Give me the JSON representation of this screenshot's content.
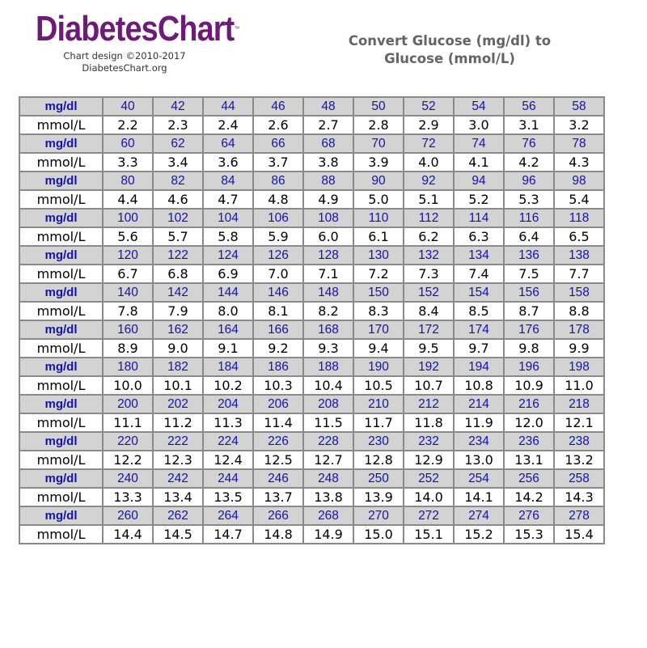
{
  "logo": {
    "wordmark": "DiabetesChart",
    "trademark": "™",
    "credit": "Chart design ©2010-2017",
    "site": "DiabetesChart.org"
  },
  "title_line1": "Convert Glucose (mg/dl) to",
  "title_line2": "Glucose (mmol/L)",
  "colors": {
    "mg_row_background": "#d3d3d3",
    "mg_text": "#1212b4",
    "mmol_text": "#111111",
    "logo": "#6e1a78",
    "title": "#646464",
    "border": "#8a8a8a"
  },
  "chart_data": {
    "type": "table",
    "mg_label": "mg/dl",
    "mmol_label": "mmol/L",
    "rows": [
      {
        "mg": [
          "40",
          "42",
          "44",
          "46",
          "48",
          "50",
          "52",
          "54",
          "56",
          "58"
        ],
        "mmol": [
          "2.2",
          "2.3",
          "2.4",
          "2.6",
          "2.7",
          "2.8",
          "2.9",
          "3.0",
          "3.1",
          "3.2"
        ]
      },
      {
        "mg": [
          "60",
          "62",
          "64",
          "66",
          "68",
          "70",
          "72",
          "74",
          "76",
          "78"
        ],
        "mmol": [
          "3.3",
          "3.4",
          "3.6",
          "3.7",
          "3.8",
          "3.9",
          "4.0",
          "4.1",
          "4.2",
          "4.3"
        ]
      },
      {
        "mg": [
          "80",
          "82",
          "84",
          "86",
          "88",
          "90",
          "92",
          "94",
          "96",
          "98"
        ],
        "mmol": [
          "4.4",
          "4.6",
          "4.7",
          "4.8",
          "4.9",
          "5.0",
          "5.1",
          "5.2",
          "5.3",
          "5.4"
        ]
      },
      {
        "mg": [
          "100",
          "102",
          "104",
          "106",
          "108",
          "110",
          "112",
          "114",
          "116",
          "118"
        ],
        "mmol": [
          "5.6",
          "5.7",
          "5.8",
          "5.9",
          "6.0",
          "6.1",
          "6.2",
          "6.3",
          "6.4",
          "6.5"
        ]
      },
      {
        "mg": [
          "120",
          "122",
          "124",
          "126",
          "128",
          "130",
          "132",
          "134",
          "136",
          "138"
        ],
        "mmol": [
          "6.7",
          "6.8",
          "6.9",
          "7.0",
          "7.1",
          "7.2",
          "7.3",
          "7.4",
          "7.5",
          "7.7"
        ]
      },
      {
        "mg": [
          "140",
          "142",
          "144",
          "146",
          "148",
          "150",
          "152",
          "154",
          "156",
          "158"
        ],
        "mmol": [
          "7.8",
          "7.9",
          "8.0",
          "8.1",
          "8.2",
          "8.3",
          "8.4",
          "8.5",
          "8.7",
          "8.8"
        ]
      },
      {
        "mg": [
          "160",
          "162",
          "164",
          "166",
          "168",
          "170",
          "172",
          "174",
          "176",
          "178"
        ],
        "mmol": [
          "8.9",
          "9.0",
          "9.1",
          "9.2",
          "9.3",
          "9.4",
          "9.5",
          "9.7",
          "9.8",
          "9.9"
        ]
      },
      {
        "mg": [
          "180",
          "182",
          "184",
          "186",
          "188",
          "190",
          "192",
          "194",
          "196",
          "198"
        ],
        "mmol": [
          "10.0",
          "10.1",
          "10.2",
          "10.3",
          "10.4",
          "10.5",
          "10.7",
          "10.8",
          "10.9",
          "11.0"
        ]
      },
      {
        "mg": [
          "200",
          "202",
          "204",
          "206",
          "208",
          "210",
          "212",
          "214",
          "216",
          "218"
        ],
        "mmol": [
          "11.1",
          "11.2",
          "11.3",
          "11.4",
          "11.5",
          "11.7",
          "11.8",
          "11.9",
          "12.0",
          "12.1"
        ]
      },
      {
        "mg": [
          "220",
          "222",
          "224",
          "226",
          "228",
          "230",
          "232",
          "234",
          "236",
          "238"
        ],
        "mmol": [
          "12.2",
          "12.3",
          "12.4",
          "12.5",
          "12.7",
          "12.8",
          "12.9",
          "13.0",
          "13.1",
          "13.2"
        ]
      },
      {
        "mg": [
          "240",
          "242",
          "244",
          "246",
          "248",
          "250",
          "252",
          "254",
          "256",
          "258"
        ],
        "mmol": [
          "13.3",
          "13.4",
          "13.5",
          "13.7",
          "13.8",
          "13.9",
          "14.0",
          "14.1",
          "14.2",
          "14.3"
        ]
      },
      {
        "mg": [
          "260",
          "262",
          "264",
          "266",
          "268",
          "270",
          "272",
          "274",
          "276",
          "278"
        ],
        "mmol": [
          "14.4",
          "14.5",
          "14.7",
          "14.8",
          "14.9",
          "15.0",
          "15.1",
          "15.2",
          "15.3",
          "15.4"
        ]
      }
    ]
  }
}
